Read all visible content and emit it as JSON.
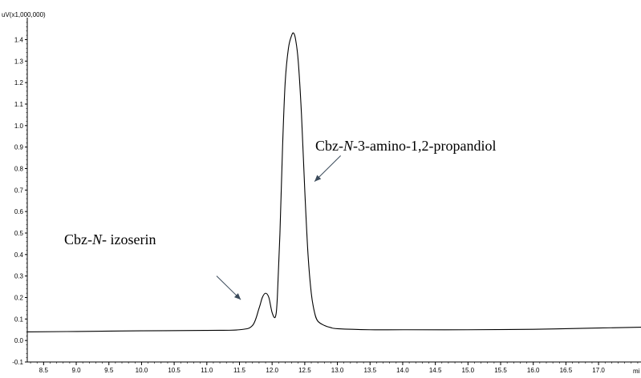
{
  "chart_data": {
    "type": "line",
    "title": "",
    "y_unit_label": "uV(x1,000,000)",
    "x_unit_label": "mi",
    "xlim": [
      8.25,
      17.65
    ],
    "ylim": [
      -0.1,
      1.48
    ],
    "x_ticks": [
      8.5,
      9.0,
      9.5,
      10.0,
      10.5,
      11.0,
      11.5,
      12.0,
      12.5,
      13.0,
      13.5,
      14.0,
      14.5,
      15.0,
      15.5,
      16.0,
      16.5,
      17.0
    ],
    "x_tick_labels": [
      "8.5",
      "9.0",
      "9.5",
      "10.0",
      "10.5",
      "11.0",
      "11.5",
      "12.0",
      "12.5",
      "13.0",
      "13.5",
      "14.0",
      "14.5",
      "15.0",
      "15.5",
      "16.0",
      "16.5",
      "17.0"
    ],
    "y_ticks": [
      -0.1,
      0.0,
      0.1,
      0.2,
      0.3,
      0.4,
      0.5,
      0.6,
      0.7,
      0.8,
      0.9,
      1.0,
      1.1,
      1.2,
      1.3,
      1.4
    ],
    "y_tick_labels": [
      "-0.1",
      "0.0",
      "0.1",
      "0.2",
      "0.3",
      "0.4",
      "0.5",
      "0.6",
      "0.7",
      "0.8",
      "0.9",
      "1.0",
      "1.1",
      "1.2",
      "1.3",
      "1.4"
    ],
    "series": [
      {
        "color": "#000000",
        "x": [
          8.25,
          9.0,
          10.0,
          11.0,
          11.5,
          11.7,
          11.8,
          11.85,
          11.9,
          11.95,
          12.0,
          12.05,
          12.08,
          12.12,
          12.16,
          12.2,
          12.25,
          12.3,
          12.33,
          12.36,
          12.4,
          12.45,
          12.5,
          12.55,
          12.6,
          12.65,
          12.7,
          12.8,
          12.9,
          13.0,
          13.5,
          14.0,
          15.0,
          16.0,
          17.0,
          17.65
        ],
        "y": [
          0.04,
          0.042,
          0.045,
          0.047,
          0.05,
          0.07,
          0.15,
          0.2,
          0.22,
          0.2,
          0.13,
          0.11,
          0.2,
          0.5,
          0.9,
          1.2,
          1.36,
          1.42,
          1.43,
          1.4,
          1.3,
          1.05,
          0.7,
          0.4,
          0.22,
          0.13,
          0.09,
          0.07,
          0.06,
          0.055,
          0.05,
          0.05,
          0.05,
          0.052,
          0.058,
          0.062
        ]
      }
    ],
    "annotations": [
      {
        "text_parts": [
          "Cbz-",
          "N",
          "- izoserin"
        ],
        "italic_part": 1,
        "arrow_from": [
          11.15,
          0.3
        ],
        "arrow_to": [
          11.52,
          0.19
        ]
      },
      {
        "text_parts": [
          "Cbz-",
          "N",
          "-3-amino-1,2-propandiol"
        ],
        "italic_part": 1,
        "arrow_from": [
          13.05,
          0.86
        ],
        "arrow_to": [
          12.65,
          0.74
        ]
      }
    ]
  }
}
